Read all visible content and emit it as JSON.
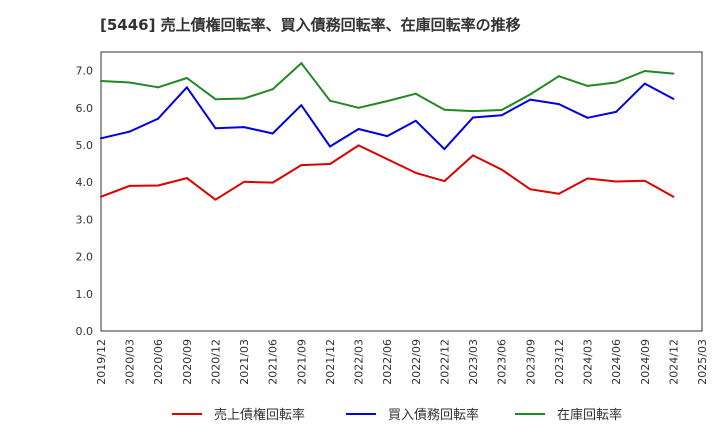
{
  "chart_data": {
    "type": "line",
    "title": "[5446]  売上債権回転率、買入債務回転率、在庫回転率の推移",
    "xlabel": "",
    "ylabel": "",
    "ylim": [
      0,
      7.5
    ],
    "yticks": [
      "0.0",
      "1.0",
      "2.0",
      "3.0",
      "4.0",
      "5.0",
      "6.0",
      "7.0"
    ],
    "ytick_values": [
      0,
      1,
      2,
      3,
      4,
      5,
      6,
      7
    ],
    "grid": true,
    "legend_position": "bottom",
    "categories": [
      "2019/12",
      "2020/03",
      "2020/06",
      "2020/09",
      "2020/12",
      "2021/03",
      "2021/06",
      "2021/09",
      "2021/12",
      "2022/03",
      "2022/06",
      "2022/09",
      "2022/12",
      "2023/03",
      "2023/06",
      "2023/09",
      "2023/12",
      "2024/03",
      "2024/06",
      "2024/09",
      "2024/12",
      "2025/03"
    ],
    "series": [
      {
        "name": "売上債権回転率",
        "color": "#dd0000",
        "values": [
          3.61,
          3.9,
          3.91,
          4.11,
          3.53,
          4.01,
          3.99,
          4.46,
          4.49,
          4.99,
          4.62,
          4.25,
          4.03,
          4.72,
          4.34,
          3.81,
          3.69,
          4.1,
          4.02,
          4.04,
          3.61,
          null
        ]
      },
      {
        "name": "買入債務回転率",
        "color": "#0000dd",
        "values": [
          5.18,
          5.36,
          5.71,
          6.55,
          5.45,
          5.48,
          5.31,
          6.07,
          4.96,
          5.43,
          5.24,
          5.65,
          4.89,
          5.74,
          5.8,
          6.22,
          6.1,
          5.73,
          5.89,
          6.65,
          6.24,
          null
        ]
      },
      {
        "name": "在庫回転率",
        "color": "#228822",
        "values": [
          6.72,
          6.68,
          6.55,
          6.8,
          6.23,
          6.25,
          6.5,
          7.2,
          6.19,
          6.0,
          6.18,
          6.38,
          5.95,
          5.91,
          5.94,
          6.36,
          6.85,
          6.59,
          6.68,
          6.99,
          6.92,
          null
        ]
      }
    ]
  }
}
